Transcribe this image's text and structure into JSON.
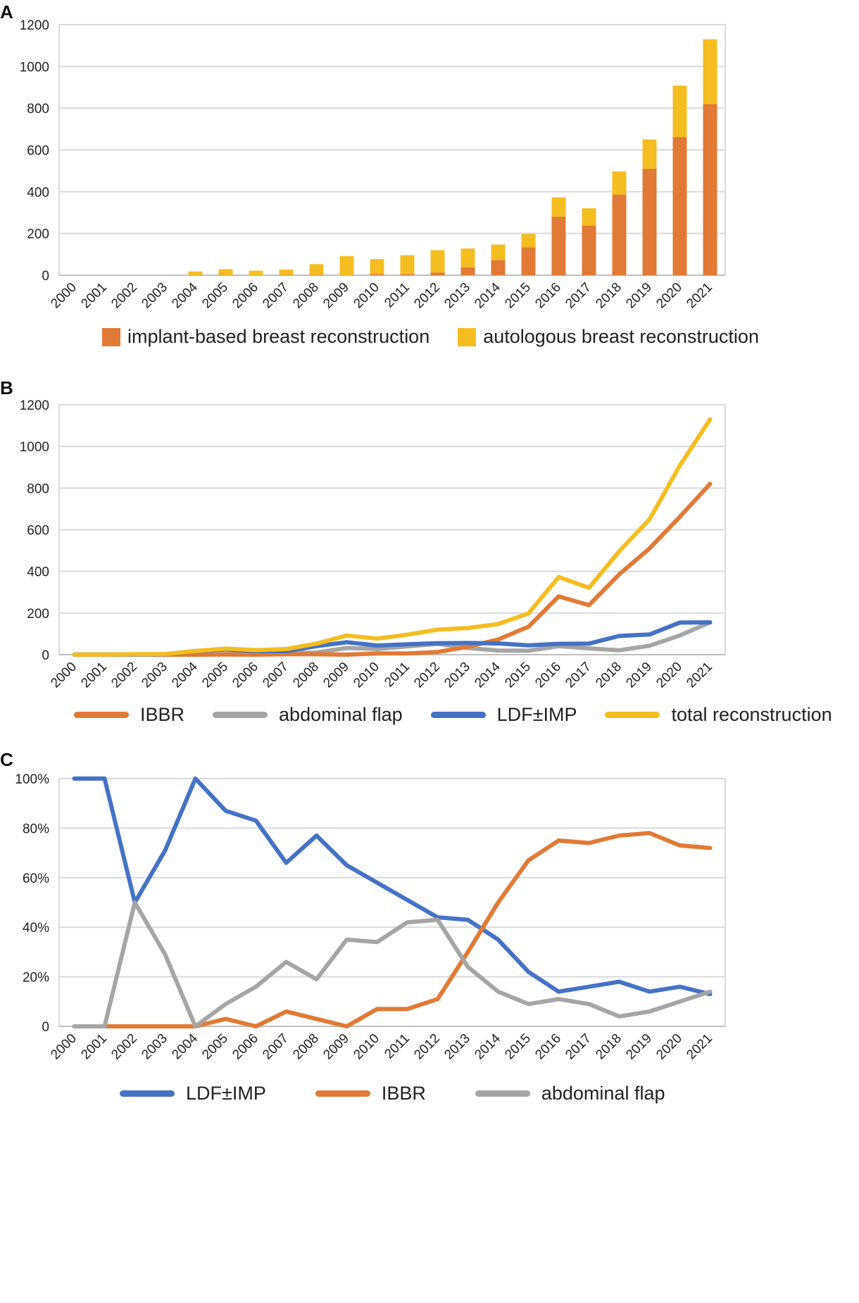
{
  "panels": {
    "a": "A",
    "b": "B",
    "c": "C"
  },
  "colors": {
    "orange": "#E07A35",
    "yellow": "#F4BD20",
    "blue": "#4472C4",
    "gray": "#A5A5A5",
    "grid": "#D9D9D9",
    "axis": "#BFBFBF"
  },
  "chart_data": [
    {
      "id": "A",
      "type": "bar",
      "stacked": true,
      "categories": [
        "2000",
        "2001",
        "2002",
        "2003",
        "2004",
        "2005",
        "2006",
        "2007",
        "2008",
        "2009",
        "2010",
        "2011",
        "2012",
        "2013",
        "2014",
        "2015",
        "2016",
        "2017",
        "2018",
        "2019",
        "2020",
        "2021"
      ],
      "series": [
        {
          "name": "implant-based breast reconstruction",
          "color": "#E07A35",
          "values": [
            0,
            0,
            0,
            0,
            0,
            1,
            0,
            2,
            2,
            0,
            6,
            6,
            13,
            38,
            73,
            134,
            280,
            238,
            386,
            510,
            662,
            820
          ]
        },
        {
          "name": "autologous breast reconstruction",
          "color": "#F4BD20",
          "values": [
            0,
            0,
            0,
            0,
            18,
            28,
            22,
            25,
            51,
            92,
            71,
            90,
            107,
            90,
            74,
            64,
            93,
            83,
            111,
            140,
            246,
            310
          ]
        }
      ],
      "ylim": [
        0,
        1200
      ],
      "yticks": [
        "0",
        "200",
        "400",
        "600",
        "800",
        "1000",
        "1200"
      ],
      "legend_position": "bottom"
    },
    {
      "id": "B",
      "type": "line",
      "categories": [
        "2000",
        "2001",
        "2002",
        "2003",
        "2004",
        "2005",
        "2006",
        "2007",
        "2008",
        "2009",
        "2010",
        "2011",
        "2012",
        "2013",
        "2014",
        "2015",
        "2016",
        "2017",
        "2018",
        "2019",
        "2020",
        "2021"
      ],
      "series": [
        {
          "name": "IBBR",
          "color": "#E07A35",
          "values": [
            0,
            0,
            0,
            0,
            0,
            1,
            0,
            2,
            2,
            0,
            6,
            6,
            13,
            38,
            73,
            134,
            280,
            238,
            386,
            510,
            662,
            820
          ]
        },
        {
          "name": "abdominal flap",
          "color": "#A5A5A5",
          "values": [
            0,
            0,
            1,
            1,
            0,
            3,
            4,
            8,
            10,
            32,
            27,
            40,
            52,
            32,
            20,
            19,
            41,
            30,
            21,
            43,
            92,
            155
          ]
        },
        {
          "name": "LDF±IMP",
          "color": "#4472C4",
          "values": [
            1,
            1,
            1,
            2,
            18,
            25,
            18,
            17,
            41,
            60,
            44,
            50,
            55,
            56,
            54,
            45,
            52,
            53,
            90,
            97,
            154,
            155
          ]
        },
        {
          "name": "total reconstruction",
          "color": "#F4BD20",
          "values": [
            1,
            1,
            2,
            3,
            18,
            29,
            22,
            27,
            53,
            92,
            77,
            96,
            120,
            128,
            147,
            198,
            373,
            321,
            497,
            650,
            908,
            1130
          ]
        }
      ],
      "ylim": [
        0,
        1200
      ],
      "yticks": [
        "0",
        "200",
        "400",
        "600",
        "800",
        "1000",
        "1200"
      ],
      "legend_position": "bottom"
    },
    {
      "id": "C",
      "type": "line",
      "categories": [
        "2000",
        "2001",
        "2002",
        "2003",
        "2004",
        "2005",
        "2006",
        "2007",
        "2008",
        "2009",
        "2010",
        "2011",
        "2012",
        "2013",
        "2014",
        "2015",
        "2016",
        "2017",
        "2018",
        "2019",
        "2020",
        "2021"
      ],
      "series": [
        {
          "name": "LDF±IMP",
          "color": "#4472C4",
          "values": [
            100,
            100,
            50,
            71,
            100,
            87,
            83,
            66,
            77,
            65,
            58,
            51,
            44,
            43,
            35,
            22,
            14,
            16,
            18,
            14,
            16,
            13
          ]
        },
        {
          "name": "IBBR",
          "color": "#E07A35",
          "values": [
            0,
            0,
            0,
            0,
            0,
            3,
            0,
            6,
            3,
            0,
            7,
            7,
            11,
            30,
            50,
            67,
            75,
            74,
            77,
            78,
            73,
            72
          ]
        },
        {
          "name": "abdominal flap",
          "color": "#A5A5A5",
          "values": [
            0,
            0,
            50,
            29,
            0,
            9,
            16,
            26,
            19,
            35,
            34,
            42,
            43,
            24,
            14,
            9,
            11,
            9,
            4,
            6,
            10,
            14
          ]
        }
      ],
      "ylim": [
        0,
        100
      ],
      "yticks": [
        "0",
        "20%",
        "40%",
        "60%",
        "80%",
        "100%"
      ],
      "legend_position": "bottom"
    }
  ]
}
